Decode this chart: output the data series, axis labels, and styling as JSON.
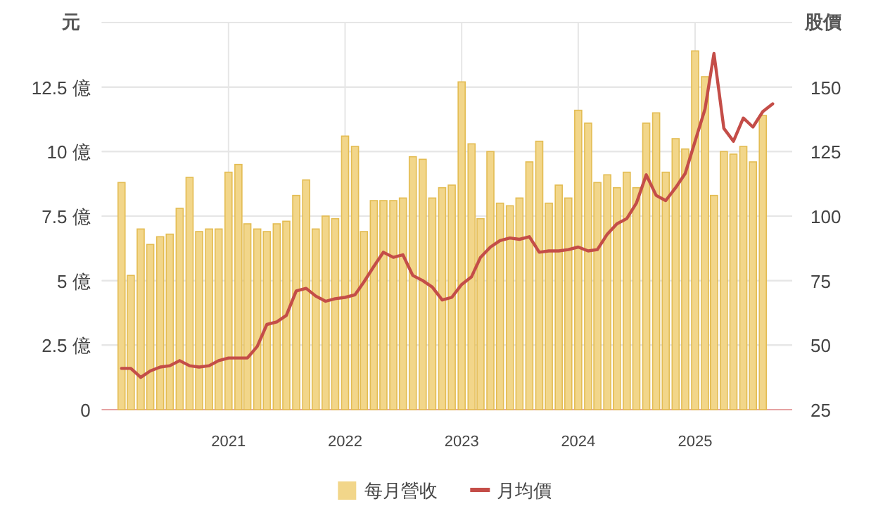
{
  "chart_data": {
    "type": "bar",
    "ylabel": "元",
    "y2label": "股價",
    "x": [
      "2020-02",
      "2020-03",
      "2020-04",
      "2020-05",
      "2020-06",
      "2020-07",
      "2020-08",
      "2020-09",
      "2020-10",
      "2020-11",
      "2020-12",
      "2021-01",
      "2021-02",
      "2021-03",
      "2021-04",
      "2021-05",
      "2021-06",
      "2021-07",
      "2021-08",
      "2021-09",
      "2021-10",
      "2021-11",
      "2021-12",
      "2022-01",
      "2022-02",
      "2022-03",
      "2022-04",
      "2022-05",
      "2022-06",
      "2022-07",
      "2022-08",
      "2022-09",
      "2022-10",
      "2022-11",
      "2022-12",
      "2023-01",
      "2023-02",
      "2023-03",
      "2023-04",
      "2023-05",
      "2023-06",
      "2023-07",
      "2023-08",
      "2023-09",
      "2023-10",
      "2023-11",
      "2023-12",
      "2024-01",
      "2024-02",
      "2024-03",
      "2024-04",
      "2024-05",
      "2024-06",
      "2024-07",
      "2024-08",
      "2024-09",
      "2024-10",
      "2024-11",
      "2024-12",
      "2025-01",
      "2025-02",
      "2025-03",
      "2025-04",
      "2025-05",
      "2025-06",
      "2025-07",
      "2025-08",
      "2025-09"
    ],
    "series": [
      {
        "name": "每月營收",
        "color": "#f2d68a",
        "values": [
          8.8,
          5.2,
          7.0,
          6.4,
          6.7,
          6.8,
          7.8,
          9.0,
          6.9,
          7.0,
          7.0,
          9.2,
          9.5,
          7.2,
          7.0,
          6.9,
          7.2,
          7.3,
          8.3,
          8.9,
          7.0,
          7.5,
          7.4,
          10.6,
          10.2,
          6.9,
          8.1,
          8.1,
          8.1,
          8.2,
          9.8,
          9.7,
          8.2,
          8.6,
          8.7,
          12.7,
          10.3,
          7.4,
          10.0,
          8.0,
          7.9,
          8.2,
          9.6,
          10.4,
          8.0,
          8.7,
          8.2,
          11.6,
          11.1,
          8.8,
          9.1,
          8.6,
          9.2,
          8.6,
          11.1,
          11.5,
          9.2,
          10.5,
          10.1,
          13.9,
          12.9,
          8.3,
          10.0,
          9.9,
          10.2,
          9.6,
          11.4,
          null
        ]
      },
      {
        "name": "月均價",
        "type": "line",
        "axis": "y2",
        "color": "#c44d48",
        "values": [
          41,
          41,
          37.5,
          40,
          41.5,
          42,
          44,
          42,
          41.5,
          42,
          44,
          45,
          45,
          45,
          49.5,
          58,
          59,
          61.5,
          71,
          72,
          69,
          67,
          68,
          68.5,
          69.5,
          74.5,
          80.5,
          86,
          84,
          85,
          77,
          75,
          72.5,
          67.5,
          68.5,
          73.5,
          76.5,
          84,
          88,
          90.5,
          91.5,
          91,
          92,
          86,
          86.5,
          86.5,
          87,
          88,
          86.5,
          87,
          93,
          97,
          99,
          105,
          116,
          108,
          106,
          111,
          116.5,
          129,
          141.5,
          163,
          134,
          129,
          138,
          134.5,
          140.5,
          143.5
        ]
      }
    ],
    "xlim": [
      "2019-12",
      "2025-11"
    ],
    "xticks": [
      "2021",
      "2022",
      "2023",
      "2024",
      "2025"
    ],
    "ylim": [
      0,
      15
    ],
    "yticks": [
      0,
      {
        "value": 2.5,
        "label": "2.5 億"
      },
      {
        "value": 5,
        "label": "5 億"
      },
      {
        "value": 7.5,
        "label": "7.5 億"
      },
      {
        "value": 10,
        "label": "10 億"
      },
      {
        "value": 12.5,
        "label": "12.5 億"
      },
      {
        "value": 15,
        "label": null
      }
    ],
    "y2lim": [
      25,
      175
    ],
    "y2ticks": [
      25,
      50,
      75,
      100,
      125,
      150,
      {
        "value": 175,
        "label": null
      }
    ],
    "grid": true,
    "legend": "bottom"
  }
}
